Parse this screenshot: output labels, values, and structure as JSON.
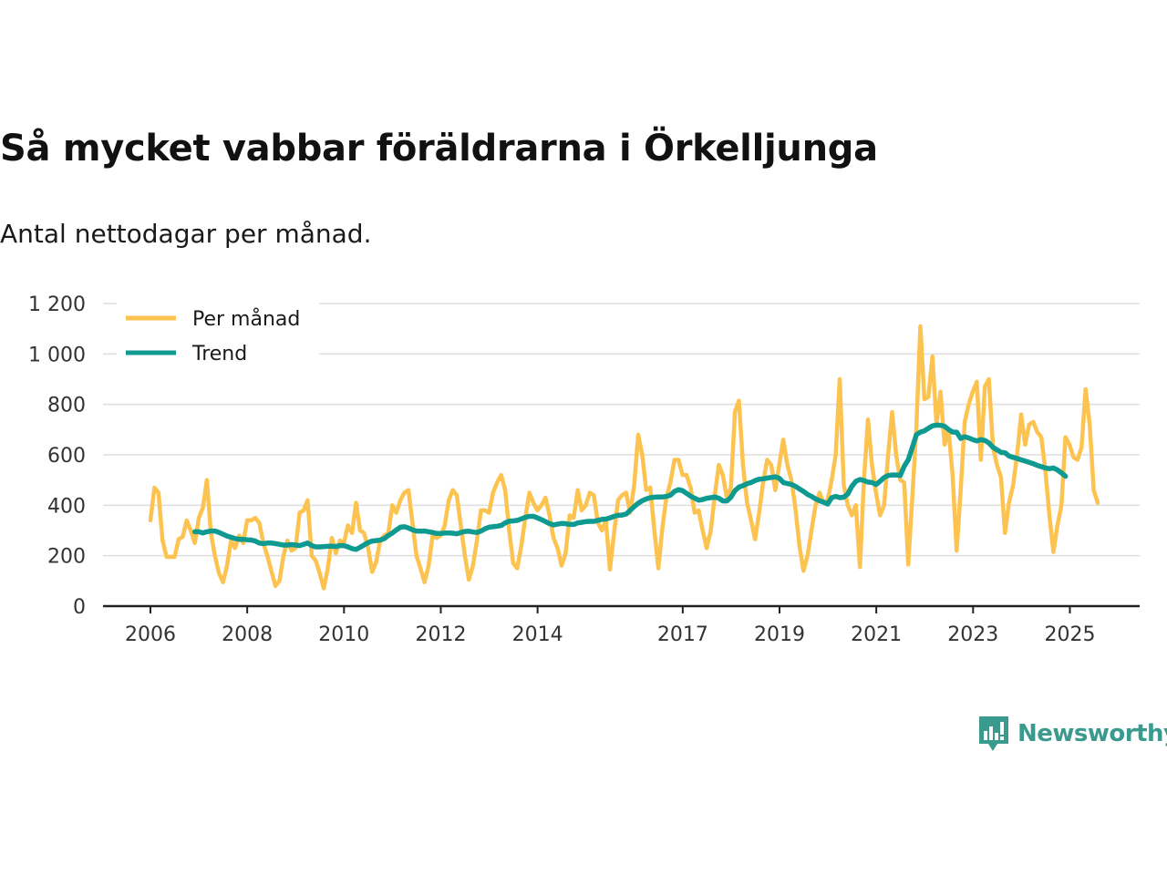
{
  "chart_data": {
    "type": "line",
    "title": "Så mycket vabbar föräldrarna i Örkelljunga",
    "subtitle": "Antal nettodagar per månad.",
    "xlabel": "",
    "ylabel": "",
    "x_range": [
      2006,
      2025.5
    ],
    "ylim": [
      0,
      1200
    ],
    "y_ticks": [
      0,
      200,
      400,
      600,
      800,
      1000,
      1200
    ],
    "y_tick_labels": [
      "0",
      "200",
      "400",
      "600",
      "800",
      "1 000",
      "1 200"
    ],
    "x_ticks": [
      2006,
      2008,
      2010,
      2012,
      2014,
      2017,
      2019,
      2021,
      2023,
      2025
    ],
    "x_tick_labels": [
      "2006",
      "2008",
      "2010",
      "2012",
      "2014",
      "2017",
      "2019",
      "2021",
      "2023",
      "2025"
    ],
    "grid": true,
    "legend_position": "top-left",
    "series": [
      {
        "name": "Per månad",
        "color": "#FDC350",
        "x_start": 2006,
        "step": 0.0833,
        "values": [
          340,
          470,
          450,
          260,
          195,
          195,
          195,
          265,
          275,
          340,
          300,
          250,
          350,
          390,
          500,
          290,
          200,
          130,
          95,
          160,
          260,
          230,
          280,
          250,
          340,
          340,
          350,
          330,
          250,
          200,
          140,
          80,
          100,
          200,
          260,
          220,
          230,
          370,
          380,
          420,
          200,
          180,
          130,
          70,
          150,
          270,
          210,
          260,
          250,
          320,
          290,
          410,
          300,
          290,
          230,
          135,
          175,
          260,
          280,
          290,
          400,
          370,
          420,
          450,
          460,
          330,
          200,
          150,
          95,
          160,
          280,
          270,
          280,
          320,
          420,
          460,
          440,
          320,
          200,
          105,
          160,
          260,
          380,
          380,
          370,
          450,
          490,
          520,
          460,
          300,
          170,
          150,
          240,
          350,
          450,
          410,
          380,
          400,
          430,
          360,
          270,
          230,
          160,
          210,
          360,
          350,
          460,
          380,
          400,
          450,
          440,
          330,
          300,
          340,
          145,
          290,
          420,
          440,
          450,
          370,
          480,
          680,
          600,
          460,
          470,
          300,
          150,
          310,
          430,
          490,
          580,
          580,
          520,
          520,
          470,
          370,
          380,
          300,
          230,
          300,
          440,
          560,
          520,
          430,
          470,
          770,
          815,
          560,
          410,
          340,
          265,
          370,
          490,
          580,
          560,
          460,
          560,
          660,
          560,
          500,
          390,
          240,
          140,
          200,
          300,
          400,
          450,
          410,
          420,
          500,
          600,
          900,
          480,
          400,
          360,
          400,
          155,
          500,
          740,
          560,
          450,
          360,
          400,
          600,
          770,
          600,
          500,
          490,
          165,
          430,
          700,
          1110,
          820,
          830,
          990,
          720,
          850,
          640,
          700,
          520,
          220,
          460,
          730,
          800,
          850,
          890,
          580,
          870,
          900,
          630,
          560,
          510,
          290,
          410,
          480,
          600,
          760,
          640,
          720,
          730,
          690,
          670,
          540,
          360,
          215,
          320,
          400,
          670,
          640,
          590,
          580,
          630,
          860,
          720,
          460,
          410
        ]
      },
      {
        "name": "Trend",
        "color": "#0F9A91",
        "x_start": 2006.917,
        "step": 0.0833,
        "values": [
          295,
          295,
          290,
          295,
          298,
          298,
          292,
          285,
          278,
          273,
          268,
          265,
          265,
          263,
          262,
          258,
          250,
          248,
          250,
          250,
          248,
          245,
          242,
          242,
          244,
          242,
          240,
          245,
          250,
          240,
          235,
          235,
          236,
          237,
          238,
          236,
          240,
          240,
          235,
          228,
          225,
          233,
          243,
          252,
          258,
          260,
          262,
          268,
          280,
          290,
          302,
          313,
          315,
          310,
          303,
          298,
          297,
          298,
          295,
          292,
          288,
          288,
          290,
          290,
          289,
          287,
          292,
          296,
          297,
          294,
          292,
          298,
          307,
          313,
          315,
          317,
          320,
          330,
          337,
          338,
          340,
          346,
          352,
          356,
          356,
          350,
          343,
          335,
          327,
          322,
          325,
          328,
          327,
          324,
          324,
          330,
          332,
          335,
          336,
          336,
          340,
          344,
          345,
          350,
          356,
          360,
          361,
          365,
          380,
          395,
          408,
          418,
          425,
          430,
          432,
          433,
          433,
          435,
          440,
          455,
          462,
          458,
          447,
          436,
          428,
          420,
          423,
          428,
          430,
          433,
          428,
          417,
          417,
          432,
          458,
          472,
          478,
          485,
          490,
          498,
          503,
          505,
          508,
          510,
          513,
          507,
          490,
          486,
          483,
          475,
          465,
          455,
          443,
          435,
          425,
          418,
          412,
          405,
          430,
          435,
          430,
          432,
          445,
          475,
          495,
          502,
          498,
          492,
          490,
          482,
          495,
          510,
          518,
          520,
          520,
          518,
          555,
          580,
          630,
          680,
          690,
          695,
          705,
          715,
          718,
          717,
          713,
          700,
          690,
          690,
          665,
          672,
          667,
          660,
          655,
          660,
          657,
          647,
          630,
          620,
          610,
          608,
          595,
          590,
          586,
          580,
          575,
          570,
          565,
          558,
          553,
          548,
          545,
          548,
          540,
          528,
          515
        ]
      }
    ]
  },
  "brand": {
    "name": "Newsworthy",
    "icon": "bar-chart-icon",
    "color": "#3A9A8E"
  }
}
